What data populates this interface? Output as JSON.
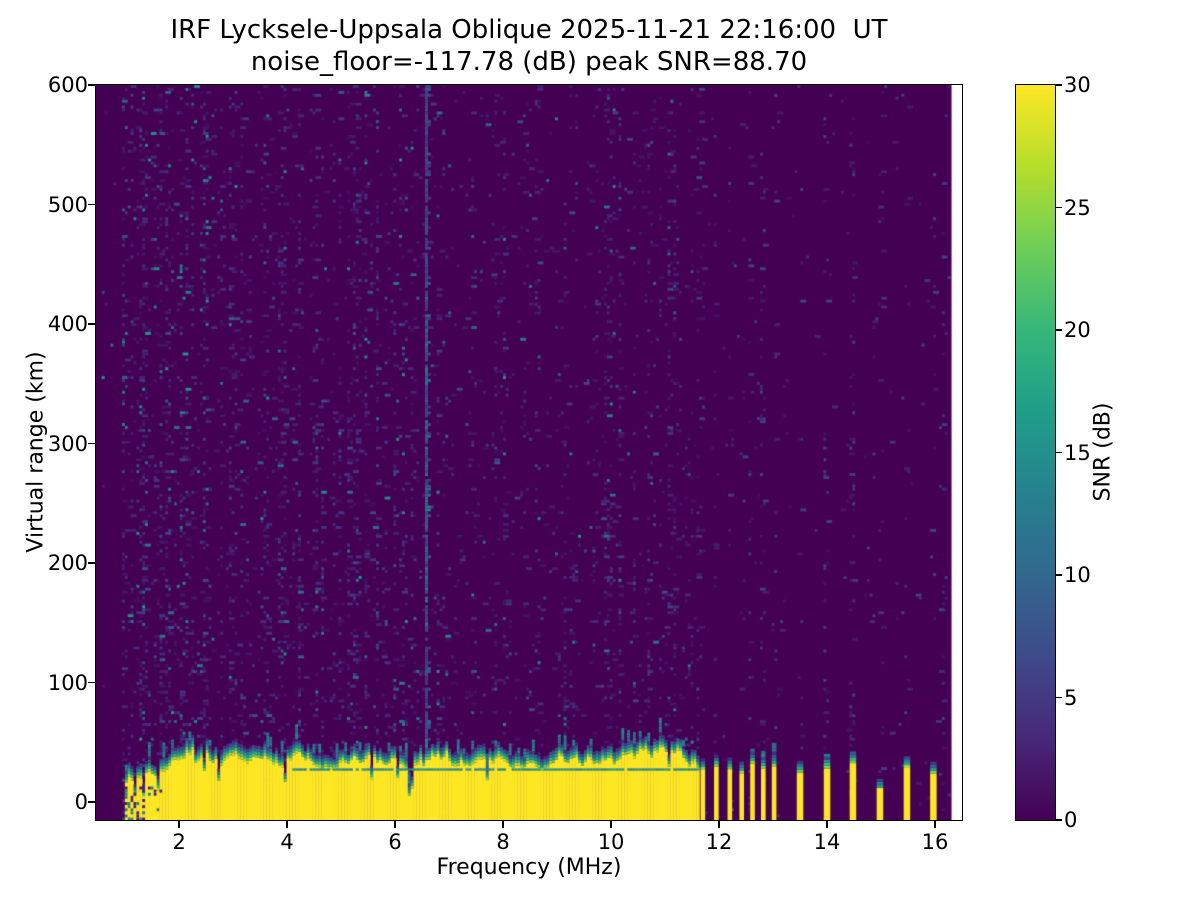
{
  "figure": {
    "title_line1": "IRF Lycksele-Uppsala Oblique 2025-11-21 22:16:00  UT",
    "title_line2": "noise_floor=-117.78 (dB) peak SNR=88.70"
  },
  "chart_data": {
    "type": "heatmap",
    "title": "IRF Lycksele-Uppsala Oblique 2025-11-21 22:16:00  UT",
    "subtitle": "noise_floor=-117.78 (dB) peak SNR=88.70",
    "xlabel": "Frequency (MHz)",
    "ylabel": "Virtual range (km)",
    "colorbar_label": "SNR (dB)",
    "xlim": [
      0.46,
      16.5
    ],
    "ylim": [
      -15,
      600
    ],
    "xticks": [
      2,
      4,
      6,
      8,
      10,
      12,
      14,
      16
    ],
    "yticks": [
      0,
      100,
      200,
      300,
      400,
      500,
      600
    ],
    "colorbar_ticks": [
      0,
      5,
      10,
      15,
      20,
      25,
      30
    ],
    "snr_range_db": [
      0,
      30
    ],
    "grid": false,
    "colormap": {
      "name": "viridis",
      "stops": [
        "#440154",
        "#482878",
        "#3e4a89",
        "#31688e",
        "#26828e",
        "#1f9e89",
        "#35b779",
        "#6ece58",
        "#b5de2b",
        "#fde725"
      ],
      "background_hex": "#440154",
      "peak_hex": "#fde725"
    },
    "data_freq_span_mhz": [
      0.93,
      16.31
    ],
    "echo_band": {
      "freq_start_mhz": 1.0,
      "freq_end_mhz": 11.63,
      "snr_db": 30,
      "top_km_at_start": 12,
      "top_km_base": 33,
      "ramp_end_mhz": 2.3,
      "top_jitter_km": 9,
      "notch_probability": 0.06,
      "notch_depth_km": 14,
      "bump_mhz": 10.9,
      "bump_km": 9,
      "fringe_depth_km": 14,
      "teal_line_km": 28.2,
      "teal_line_start_mhz": 4.05,
      "teal_line_snr_db": 13,
      "low_freq_speckle_below_mhz": 1.8
    },
    "interference_stripes_mhz": [
      11.7,
      11.95,
      12.2,
      12.42,
      12.62,
      12.82,
      13.02,
      13.5,
      14.0,
      14.48,
      14.98,
      15.48,
      15.97
    ],
    "weak_stripe_mhz": 14.98,
    "stripe_top_km_typical": 28,
    "faint_column_mhz": 16.2,
    "strong_noise_streak_mhz": 6.58,
    "strong_noise_streak_km_range": [
      140,
      430
    ],
    "noise_seed": 9
  }
}
